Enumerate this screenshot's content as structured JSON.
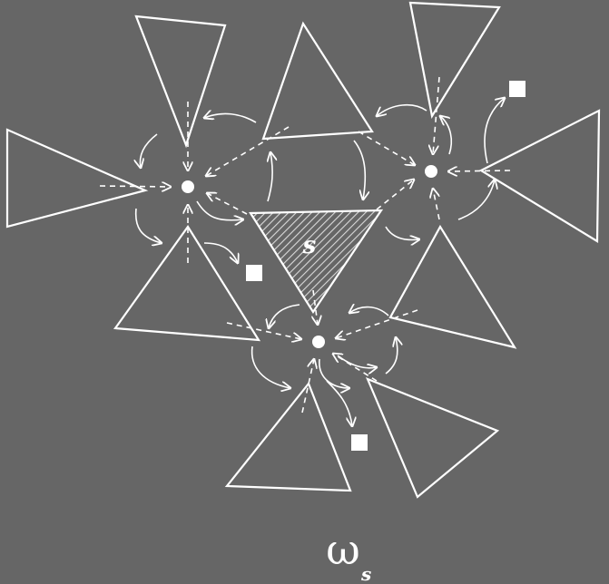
{
  "diagram": {
    "hatched_triangle_label": "s",
    "caption_symbol": "ω",
    "caption_subscript": "s",
    "colors": {
      "background": "#666666",
      "stroke": "#ffffff",
      "hatch": "#d9d9d9"
    }
  }
}
